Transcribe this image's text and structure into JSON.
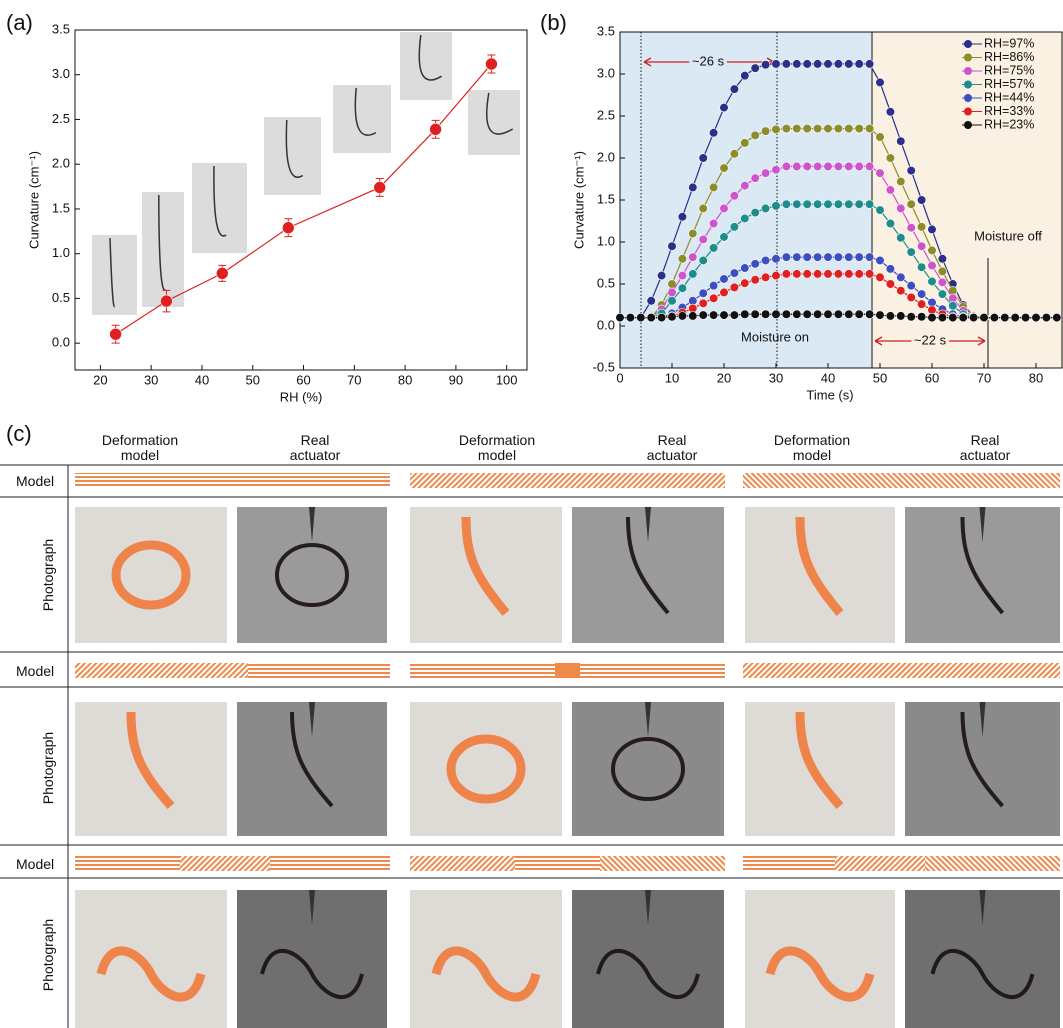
{
  "panel_labels": [
    "(a)",
    "(b)",
    "(c)"
  ],
  "chart_data": [
    {
      "type": "line",
      "xlabel": "RH (%)",
      "ylabel": "Curvature (cm⁻¹)",
      "color": "#e02020",
      "x": [
        23,
        33,
        44,
        57,
        75,
        86,
        97
      ],
      "values": [
        0.1,
        0.47,
        0.78,
        1.29,
        1.74,
        2.39,
        3.12
      ],
      "errors": [
        0.1,
        0.12,
        0.09,
        0.1,
        0.1,
        0.1,
        0.1
      ],
      "xlim": [
        15,
        104
      ],
      "xticks": [
        20,
        30,
        40,
        50,
        60,
        70,
        80,
        90,
        100
      ],
      "ylim": [
        -0.3,
        3.5
      ],
      "yticks": [
        {
          "value": 0,
          "label": "0.0"
        },
        0.5,
        {
          "value": 1,
          "label": "1.0"
        },
        1.5,
        {
          "value": 2,
          "label": "2.0"
        },
        2.5,
        {
          "value": 3,
          "label": "3.0"
        },
        3.5
      ]
    },
    {
      "type": "line",
      "xlabel": "Time (s)",
      "ylabel": "Curvature (cm⁻¹)",
      "legend": "upper right",
      "annotations": [
        "~26 s",
        "Moisture on",
        "~22 s",
        "Moisture off"
      ],
      "x": [
        0,
        2,
        4,
        6,
        8,
        10,
        12,
        14,
        16,
        18,
        20,
        22,
        24,
        26,
        28,
        30,
        32,
        34,
        36,
        38,
        40,
        42,
        44,
        46,
        48,
        50,
        52,
        54,
        56,
        58,
        60,
        62,
        64,
        66,
        68,
        70,
        72,
        74,
        76,
        78,
        80,
        82,
        84
      ],
      "xlim": [
        0,
        85
      ],
      "xticks": [
        0,
        10,
        20,
        30,
        40,
        50,
        60,
        70,
        80
      ],
      "ylim": [
        -0.5,
        3.5
      ],
      "yticks": [
        -0.5,
        {
          "value": 0,
          "label": "0.0"
        },
        0.5,
        {
          "value": 1,
          "label": "1.0"
        },
        1.5,
        {
          "value": 2,
          "label": "2.0"
        },
        2.5,
        {
          "value": 3,
          "label": "3.0"
        },
        3.5
      ],
      "series": [
        {
          "name": "RH=97%",
          "color": "#2b2f8a",
          "values": [
            0.1,
            0.1,
            0.1,
            0.3,
            0.6,
            0.95,
            1.3,
            1.65,
            2.0,
            2.3,
            2.6,
            2.82,
            2.98,
            3.07,
            3.11,
            3.12,
            3.12,
            3.12,
            3.12,
            3.12,
            3.12,
            3.12,
            3.12,
            3.12,
            3.12,
            2.9,
            2.55,
            2.2,
            1.85,
            1.5,
            1.15,
            0.8,
            0.5,
            0.25,
            0.12,
            0.1,
            0.1,
            0.1,
            0.1,
            0.1,
            0.1,
            0.1,
            0.1
          ]
        },
        {
          "name": "RH=86%",
          "color": "#8c8c2a",
          "values": [
            0.1,
            0.1,
            0.1,
            0.1,
            0.25,
            0.5,
            0.8,
            1.1,
            1.4,
            1.65,
            1.88,
            2.05,
            2.18,
            2.27,
            2.32,
            2.34,
            2.35,
            2.35,
            2.35,
            2.35,
            2.35,
            2.35,
            2.35,
            2.35,
            2.35,
            2.25,
            2.0,
            1.72,
            1.45,
            1.18,
            0.9,
            0.65,
            0.42,
            0.23,
            0.12,
            0.1,
            0.1,
            0.1,
            0.1,
            0.1,
            0.1,
            0.1,
            0.1
          ]
        },
        {
          "name": "RH=75%",
          "color": "#cc55cc",
          "values": [
            0.1,
            0.1,
            0.1,
            0.1,
            0.2,
            0.4,
            0.6,
            0.82,
            1.03,
            1.22,
            1.4,
            1.55,
            1.67,
            1.76,
            1.82,
            1.86,
            1.9,
            1.9,
            1.9,
            1.9,
            1.9,
            1.9,
            1.9,
            1.9,
            1.9,
            1.82,
            1.62,
            1.4,
            1.17,
            0.95,
            0.72,
            0.52,
            0.33,
            0.18,
            0.11,
            0.1,
            0.1,
            0.1,
            0.1,
            0.1,
            0.1,
            0.1,
            0.1
          ]
        },
        {
          "name": "RH=57%",
          "color": "#1e8c8c",
          "values": [
            0.1,
            0.1,
            0.1,
            0.1,
            0.15,
            0.3,
            0.45,
            0.62,
            0.78,
            0.93,
            1.06,
            1.18,
            1.28,
            1.35,
            1.4,
            1.43,
            1.45,
            1.45,
            1.45,
            1.45,
            1.45,
            1.45,
            1.45,
            1.45,
            1.45,
            1.38,
            1.22,
            1.05,
            0.88,
            0.7,
            0.53,
            0.38,
            0.24,
            0.14,
            0.1,
            0.1,
            0.1,
            0.1,
            0.1,
            0.1,
            0.1,
            0.1,
            0.1
          ]
        },
        {
          "name": "RH=44%",
          "color": "#3c4ec0",
          "values": [
            0.1,
            0.1,
            0.1,
            0.1,
            0.1,
            0.15,
            0.22,
            0.3,
            0.39,
            0.48,
            0.56,
            0.63,
            0.69,
            0.74,
            0.78,
            0.8,
            0.82,
            0.82,
            0.82,
            0.82,
            0.82,
            0.82,
            0.82,
            0.82,
            0.82,
            0.78,
            0.68,
            0.58,
            0.48,
            0.38,
            0.28,
            0.2,
            0.14,
            0.11,
            0.1,
            0.1,
            0.1,
            0.1,
            0.1,
            0.1,
            0.1,
            0.1,
            0.1
          ]
        },
        {
          "name": "RH=33%",
          "color": "#e02020",
          "values": [
            0.1,
            0.1,
            0.1,
            0.1,
            0.1,
            0.12,
            0.16,
            0.21,
            0.27,
            0.33,
            0.4,
            0.46,
            0.51,
            0.55,
            0.58,
            0.6,
            0.62,
            0.62,
            0.62,
            0.62,
            0.62,
            0.62,
            0.62,
            0.62,
            0.62,
            0.58,
            0.5,
            0.42,
            0.34,
            0.26,
            0.19,
            0.14,
            0.11,
            0.1,
            0.1,
            0.1,
            0.1,
            0.1,
            0.1,
            0.1,
            0.1,
            0.1,
            0.1
          ]
        },
        {
          "name": "RH=23%",
          "color": "#111111",
          "values": [
            0.1,
            0.1,
            0.1,
            0.1,
            0.1,
            0.11,
            0.12,
            0.12,
            0.13,
            0.13,
            0.13,
            0.13,
            0.14,
            0.14,
            0.14,
            0.14,
            0.14,
            0.14,
            0.14,
            0.14,
            0.14,
            0.14,
            0.14,
            0.14,
            0.14,
            0.13,
            0.12,
            0.12,
            0.11,
            0.11,
            0.1,
            0.1,
            0.1,
            0.1,
            0.1,
            0.1,
            0.1,
            0.1,
            0.1,
            0.1,
            0.1,
            0.1,
            0.1
          ]
        }
      ]
    }
  ],
  "panel_c": {
    "column_headers": [
      "Deformation model",
      "Real actuator",
      "Deformation model",
      "Real actuator",
      "Deformation model",
      "Real actuator"
    ],
    "row_labels": [
      "Model",
      "Photograph",
      "Model",
      "Photograph",
      "Model",
      "Photograph"
    ]
  }
}
